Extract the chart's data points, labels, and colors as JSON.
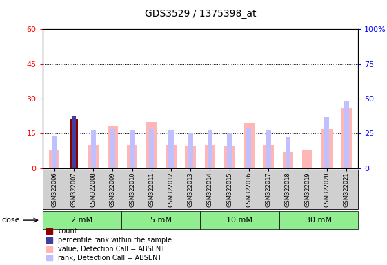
{
  "title": "GDS3529 / 1375398_at",
  "samples": [
    "GSM322006",
    "GSM322007",
    "GSM322008",
    "GSM322009",
    "GSM322010",
    "GSM322011",
    "GSM322012",
    "GSM322013",
    "GSM322014",
    "GSM322015",
    "GSM322016",
    "GSM322017",
    "GSM322018",
    "GSM322019",
    "GSM322020",
    "GSM322021"
  ],
  "value_absent": [
    8,
    0,
    10,
    18,
    10,
    20,
    10,
    9.5,
    10,
    9.5,
    19.5,
    10,
    7,
    8,
    17,
    26
  ],
  "rank_absent_pct": [
    23,
    0,
    27,
    28,
    27,
    28,
    27,
    25,
    27,
    25,
    29,
    27,
    22,
    0,
    37,
    48
  ],
  "count_val": [
    0,
    21,
    0,
    0,
    0,
    0,
    0,
    0,
    0,
    0,
    0,
    0,
    0,
    0,
    0,
    0
  ],
  "pct_rank_val": [
    0,
    37.5,
    0,
    0,
    0,
    0,
    0,
    0,
    0,
    0,
    0,
    0,
    0,
    0,
    0,
    0
  ],
  "ylim_left": [
    0,
    60
  ],
  "ylim_right": [
    0,
    100
  ],
  "yticks_left": [
    0,
    15,
    30,
    45,
    60
  ],
  "ytick_labels_left": [
    "0",
    "15",
    "30",
    "45",
    "60"
  ],
  "yticks_right": [
    0,
    25,
    50,
    75,
    100
  ],
  "ytick_labels_right": [
    "0",
    "25",
    "50",
    "75",
    "100%"
  ],
  "color_value_absent": "#ffb6b6",
  "color_rank_absent": "#c0c0ff",
  "color_count": "#8b0000",
  "color_pct_rank": "#4040a0",
  "plot_bg": "#ffffff",
  "gray_bg": "#d0d0d0",
  "dose_bg": "#90ee90",
  "dose_groups": [
    {
      "label": "2 mM",
      "start": 0,
      "end": 3
    },
    {
      "label": "5 mM",
      "start": 4,
      "end": 7
    },
    {
      "label": "10 mM",
      "start": 8,
      "end": 11
    },
    {
      "label": "30 mM",
      "start": 12,
      "end": 15
    }
  ]
}
